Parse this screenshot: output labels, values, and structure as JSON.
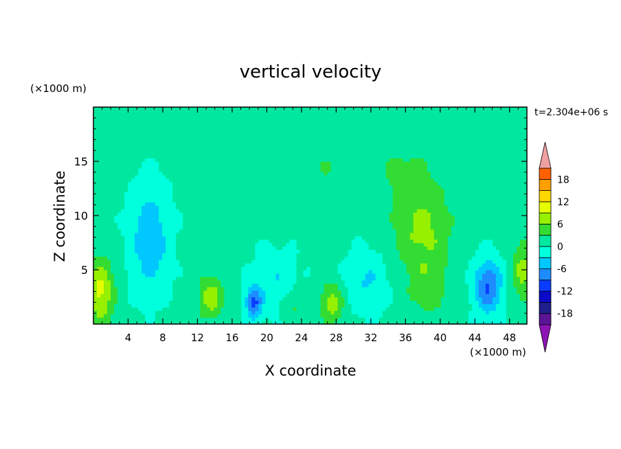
{
  "chart_data": {
    "type": "heatmap",
    "title": "vertical velocity",
    "xlabel": "X coordinate",
    "ylabel": "Z coordinate",
    "x_unit": "(×1000 m)",
    "y_unit": "(×1000 m)",
    "time_label": "t=2.304e+06 s",
    "xlim": [
      0,
      50
    ],
    "ylim": [
      0,
      20
    ],
    "xticks": [
      4,
      8,
      12,
      16,
      20,
      24,
      28,
      32,
      36,
      40,
      44,
      48
    ],
    "yticks": [
      5,
      10,
      15
    ],
    "colorbar": {
      "levels": [
        -21,
        -18,
        -15,
        -12,
        -9,
        -6,
        -3,
        0,
        3,
        6,
        9,
        12,
        15,
        18,
        21
      ],
      "tick_labels": [
        "18",
        "12",
        "6",
        "0",
        "-6",
        "-12",
        "-18"
      ],
      "tick_values": [
        18,
        12,
        6,
        0,
        -6,
        -12,
        -18
      ],
      "colors": [
        "#5a1496",
        "#1e1e8c",
        "#0a0ac8",
        "#0a3cff",
        "#1e8cff",
        "#00c8ff",
        "#00ffdc",
        "#00e8a0",
        "#32dc32",
        "#96f000",
        "#e6ff00",
        "#ffd700",
        "#ffa000",
        "#ff6000",
        "#ff2a1e",
        "#dc0000"
      ],
      "over_color": "#f0a0a0",
      "under_color": "#8c14b4"
    },
    "features": [
      {
        "x": 38.0,
        "z": 8.5,
        "amp": 6.0,
        "sx": 3.2,
        "sz": 4.5
      },
      {
        "x": 35.5,
        "z": 14.0,
        "amp": 2.5,
        "sx": 3.0,
        "sz": 3.0
      },
      {
        "x": 38.5,
        "z": 3.0,
        "amp": 3.0,
        "sx": 2.0,
        "sz": 2.5
      },
      {
        "x": 13.5,
        "z": 2.5,
        "amp": 7.0,
        "sx": 1.4,
        "sz": 2.0
      },
      {
        "x": 27.5,
        "z": 2.0,
        "amp": 7.0,
        "sx": 1.3,
        "sz": 1.8
      },
      {
        "x": 0.8,
        "z": 3.0,
        "amp": 9.0,
        "sx": 1.5,
        "sz": 3.0
      },
      {
        "x": 49.5,
        "z": 5.0,
        "amp": 6.0,
        "sx": 1.2,
        "sz": 3.0
      },
      {
        "x": 23.0,
        "z": 1.8,
        "amp": 3.5,
        "sx": 1.2,
        "sz": 1.5
      },
      {
        "x": 6.5,
        "z": 8.0,
        "amp": -6.0,
        "sx": 2.3,
        "sz": 5.0
      },
      {
        "x": 18.5,
        "z": 2.0,
        "amp": -10.0,
        "sx": 0.9,
        "sz": 1.5
      },
      {
        "x": 45.5,
        "z": 3.5,
        "amp": -10.0,
        "sx": 1.6,
        "sz": 2.5
      },
      {
        "x": 31.5,
        "z": 4.0,
        "amp": -4.0,
        "sx": 2.5,
        "sz": 3.0
      },
      {
        "x": 21.0,
        "z": 4.0,
        "amp": -3.5,
        "sx": 2.5,
        "sz": 3.0
      },
      {
        "x": 26.5,
        "z": 14.5,
        "amp": 2.0,
        "sx": 3.5,
        "sz": 2.0
      },
      {
        "x": 17.0,
        "z": 13.5,
        "amp": 1.5,
        "sx": 3.5,
        "sz": 2.0
      },
      {
        "x": 5.0,
        "z": 16.5,
        "amp": 1.5,
        "sx": 2.5,
        "sz": 0.8
      }
    ]
  }
}
